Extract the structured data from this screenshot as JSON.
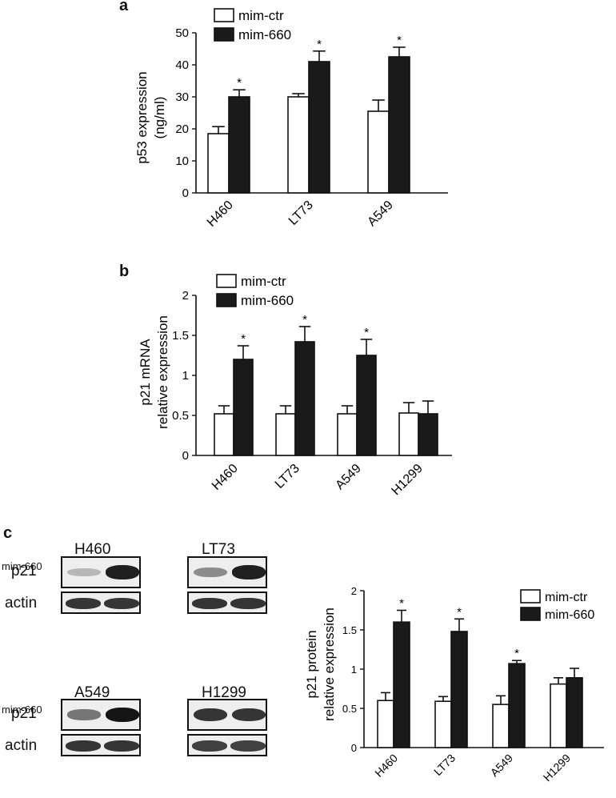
{
  "panels": {
    "a": {
      "letter": "a"
    },
    "b": {
      "letter": "b"
    },
    "c": {
      "letter": "c"
    }
  },
  "chart_data": [
    {
      "id": "a",
      "type": "bar",
      "categories": [
        "H460",
        "LT73",
        "A549"
      ],
      "series": [
        {
          "name": "mim-ctr",
          "values": [
            18.5,
            30,
            25.5
          ],
          "errors": [
            2.2,
            1.0,
            3.5
          ],
          "color": "#ffffff"
        },
        {
          "name": "mim-660",
          "values": [
            30,
            41,
            42.5
          ],
          "errors": [
            2.2,
            3.3,
            3.0
          ],
          "color": "#1a1a1a"
        }
      ],
      "significance": [
        "*",
        "*",
        "*"
      ],
      "ylabel": "p53 expression\n(ng/ml)",
      "ylim": [
        0,
        50
      ],
      "yticks": [
        "0",
        "10",
        "20",
        "30",
        "40",
        "50"
      ],
      "legend_position": "top-left"
    },
    {
      "id": "b",
      "type": "bar",
      "categories": [
        "H460",
        "LT73",
        "A549",
        "H1299"
      ],
      "series": [
        {
          "name": "mim-ctr",
          "values": [
            0.52,
            0.52,
            0.52,
            0.53
          ],
          "errors": [
            0.1,
            0.1,
            0.1,
            0.13
          ],
          "color": "#ffffff"
        },
        {
          "name": "mim-660",
          "values": [
            1.2,
            1.42,
            1.25,
            0.52
          ],
          "errors": [
            0.17,
            0.19,
            0.2,
            0.16
          ],
          "color": "#1a1a1a"
        }
      ],
      "significance": [
        "*",
        "*",
        "*",
        ""
      ],
      "ylabel": "p21 mRNA\nrelative expression",
      "ylim": [
        0,
        2
      ],
      "yticks": [
        "0",
        "0.5",
        "1",
        "1.5",
        "2"
      ],
      "legend_position": "top-left"
    },
    {
      "id": "c",
      "type": "bar",
      "categories": [
        "H460",
        "LT73",
        "A549",
        "H1299"
      ],
      "series": [
        {
          "name": "mim-ctr",
          "values": [
            0.6,
            0.59,
            0.55,
            0.81
          ],
          "errors": [
            0.1,
            0.06,
            0.11,
            0.08
          ],
          "color": "#ffffff"
        },
        {
          "name": "mim-660",
          "values": [
            1.6,
            1.48,
            1.07,
            0.89
          ],
          "errors": [
            0.15,
            0.16,
            0.04,
            0.12
          ],
          "color": "#1a1a1a"
        }
      ],
      "significance": [
        "*",
        "*",
        "*",
        ""
      ],
      "ylabel": "p21 protein\nrelative expression",
      "ylim": [
        0,
        2
      ],
      "yticks": [
        "0",
        "0.5",
        "1",
        "1.5",
        "2"
      ],
      "legend_position": "top-right"
    }
  ],
  "blots": [
    {
      "cell_line": "H460",
      "treatment_label": "mim-660",
      "minus": "-",
      "plus": "+",
      "p21_label": "p21",
      "actin_label": "actin",
      "p21_intensity": [
        0.25,
        0.95
      ],
      "actin_intensity": [
        0.85,
        0.85
      ]
    },
    {
      "cell_line": "LT73",
      "treatment_label": "",
      "minus": "-",
      "plus": "+",
      "p21_label": "",
      "actin_label": "",
      "p21_intensity": [
        0.45,
        0.95
      ],
      "actin_intensity": [
        0.85,
        0.85
      ]
    },
    {
      "cell_line": "A549",
      "treatment_label": "mim-660",
      "minus": "-",
      "plus": "+",
      "p21_label": "p21",
      "actin_label": "actin",
      "p21_intensity": [
        0.55,
        1.0
      ],
      "actin_intensity": [
        0.85,
        0.85
      ]
    },
    {
      "cell_line": "H1299",
      "treatment_label": "",
      "minus": "-",
      "plus": "+",
      "p21_label": "",
      "actin_label": "",
      "p21_intensity": [
        0.85,
        0.85
      ],
      "actin_intensity": [
        0.8,
        0.8
      ]
    }
  ]
}
